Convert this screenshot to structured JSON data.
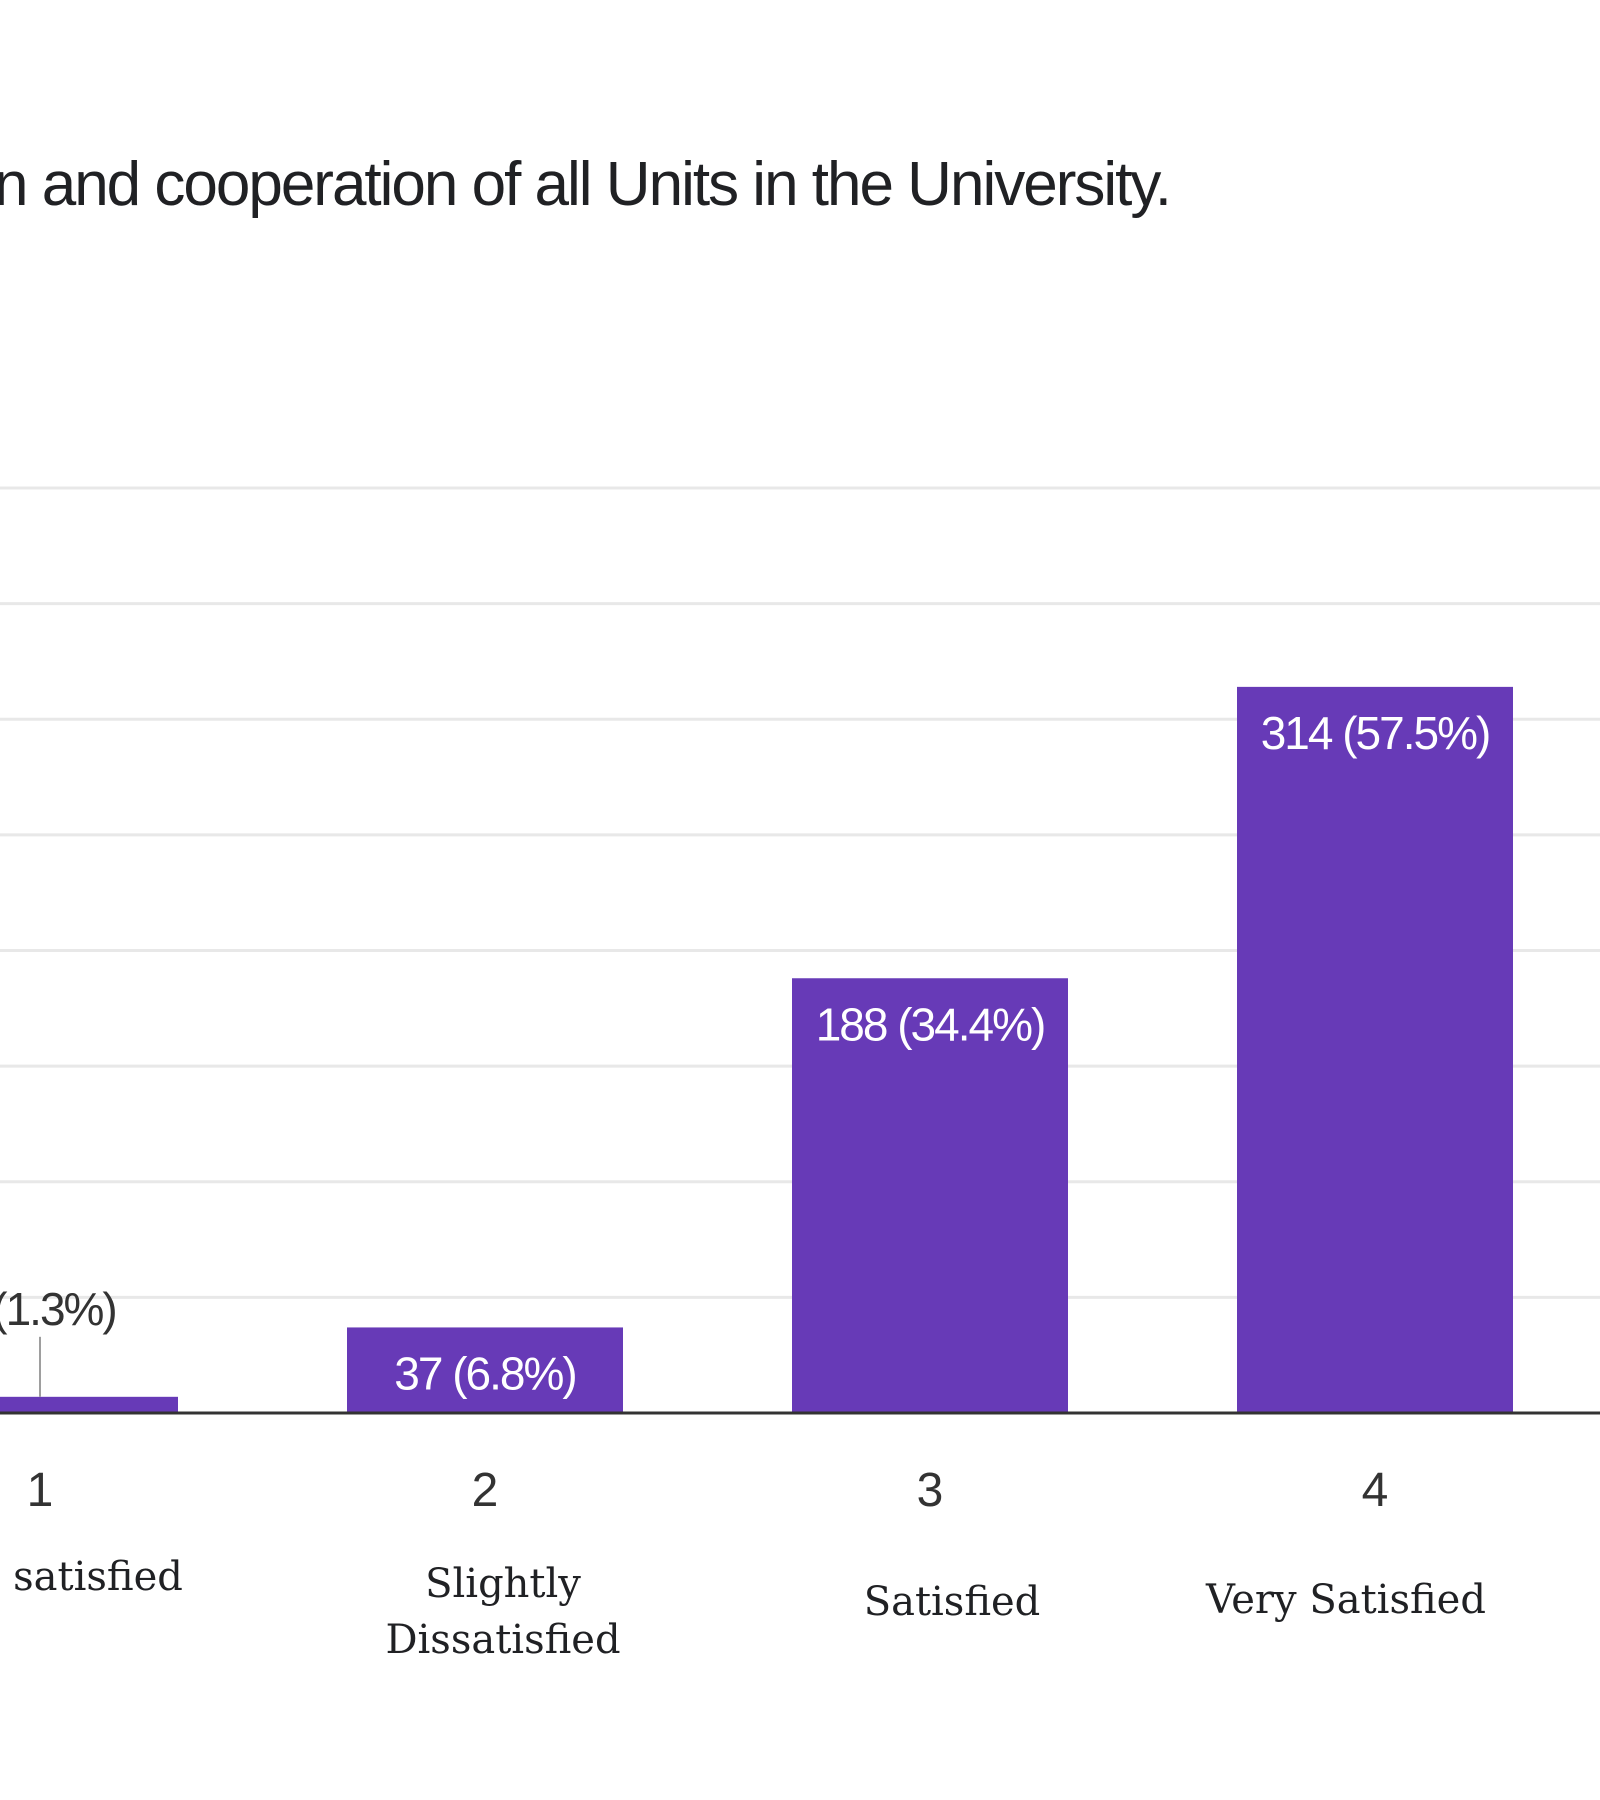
{
  "title_fragment": "n and cooperation of all Units in the University.",
  "colors": {
    "bar": "#673ab7",
    "gridline": "#e8e8e8",
    "axis": "#333333"
  },
  "chart_data": {
    "type": "bar",
    "title": "n and cooperation of all Units in the University.",
    "categories": [
      "1",
      "2",
      "3",
      "4"
    ],
    "category_descriptions": [
      "satisfied",
      "Slightly Dissatisfied",
      "Satisfied",
      "Very Satisfied"
    ],
    "values": [
      7,
      37,
      188,
      314
    ],
    "percentages": [
      "1.3%",
      "6.8%",
      "34.4%",
      "57.5%"
    ],
    "data_labels": [
      "(1.3%)",
      "37 (6.8%)",
      "188 (34.4%)",
      "314 (57.5%)"
    ],
    "ylim": [
      0,
      400
    ],
    "grid": true,
    "legend": "none"
  }
}
